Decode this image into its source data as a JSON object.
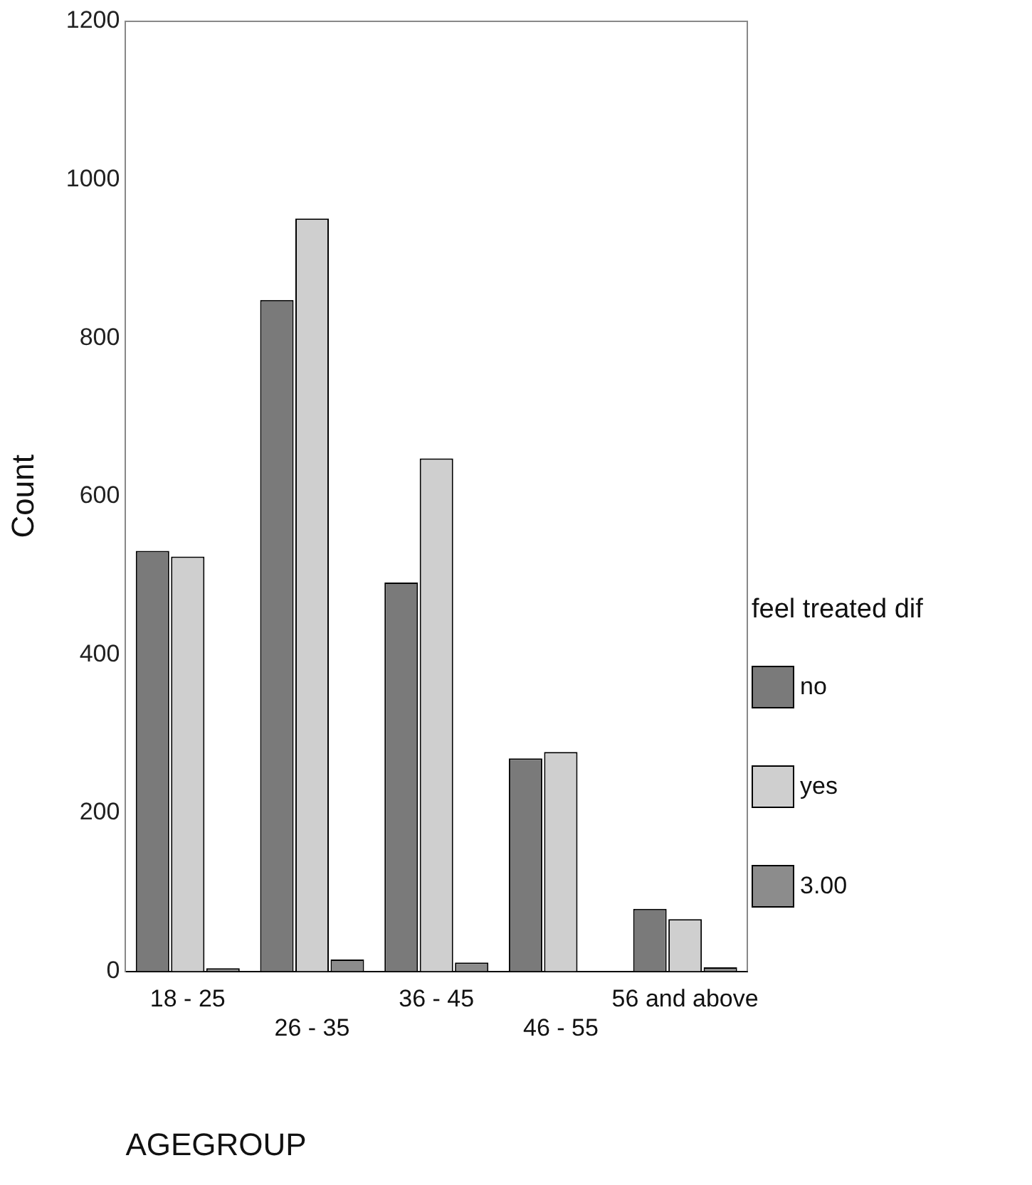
{
  "chart_data": {
    "type": "bar",
    "xlabel": "AGEGROUP",
    "ylabel": "Count",
    "legend_title": "feel treated dif",
    "categories": [
      "18 - 25",
      "26 - 35",
      "36 - 45",
      "46 - 55",
      "56 and above"
    ],
    "series": [
      {
        "name": "no",
        "color": "#7a7a7a",
        "values": [
          531,
          848,
          491,
          269,
          79
        ]
      },
      {
        "name": "yes",
        "color": "#cfcfcf",
        "values": [
          524,
          951,
          648,
          277,
          66
        ]
      },
      {
        "name": "3.00",
        "color": "#8c8c8c",
        "values": [
          4,
          15,
          11,
          0,
          5
        ]
      }
    ],
    "ylim": [
      0,
      1200
    ],
    "yticks": [
      0,
      200,
      400,
      600,
      800,
      1000,
      1200
    ],
    "grid": false,
    "legend": "right"
  }
}
